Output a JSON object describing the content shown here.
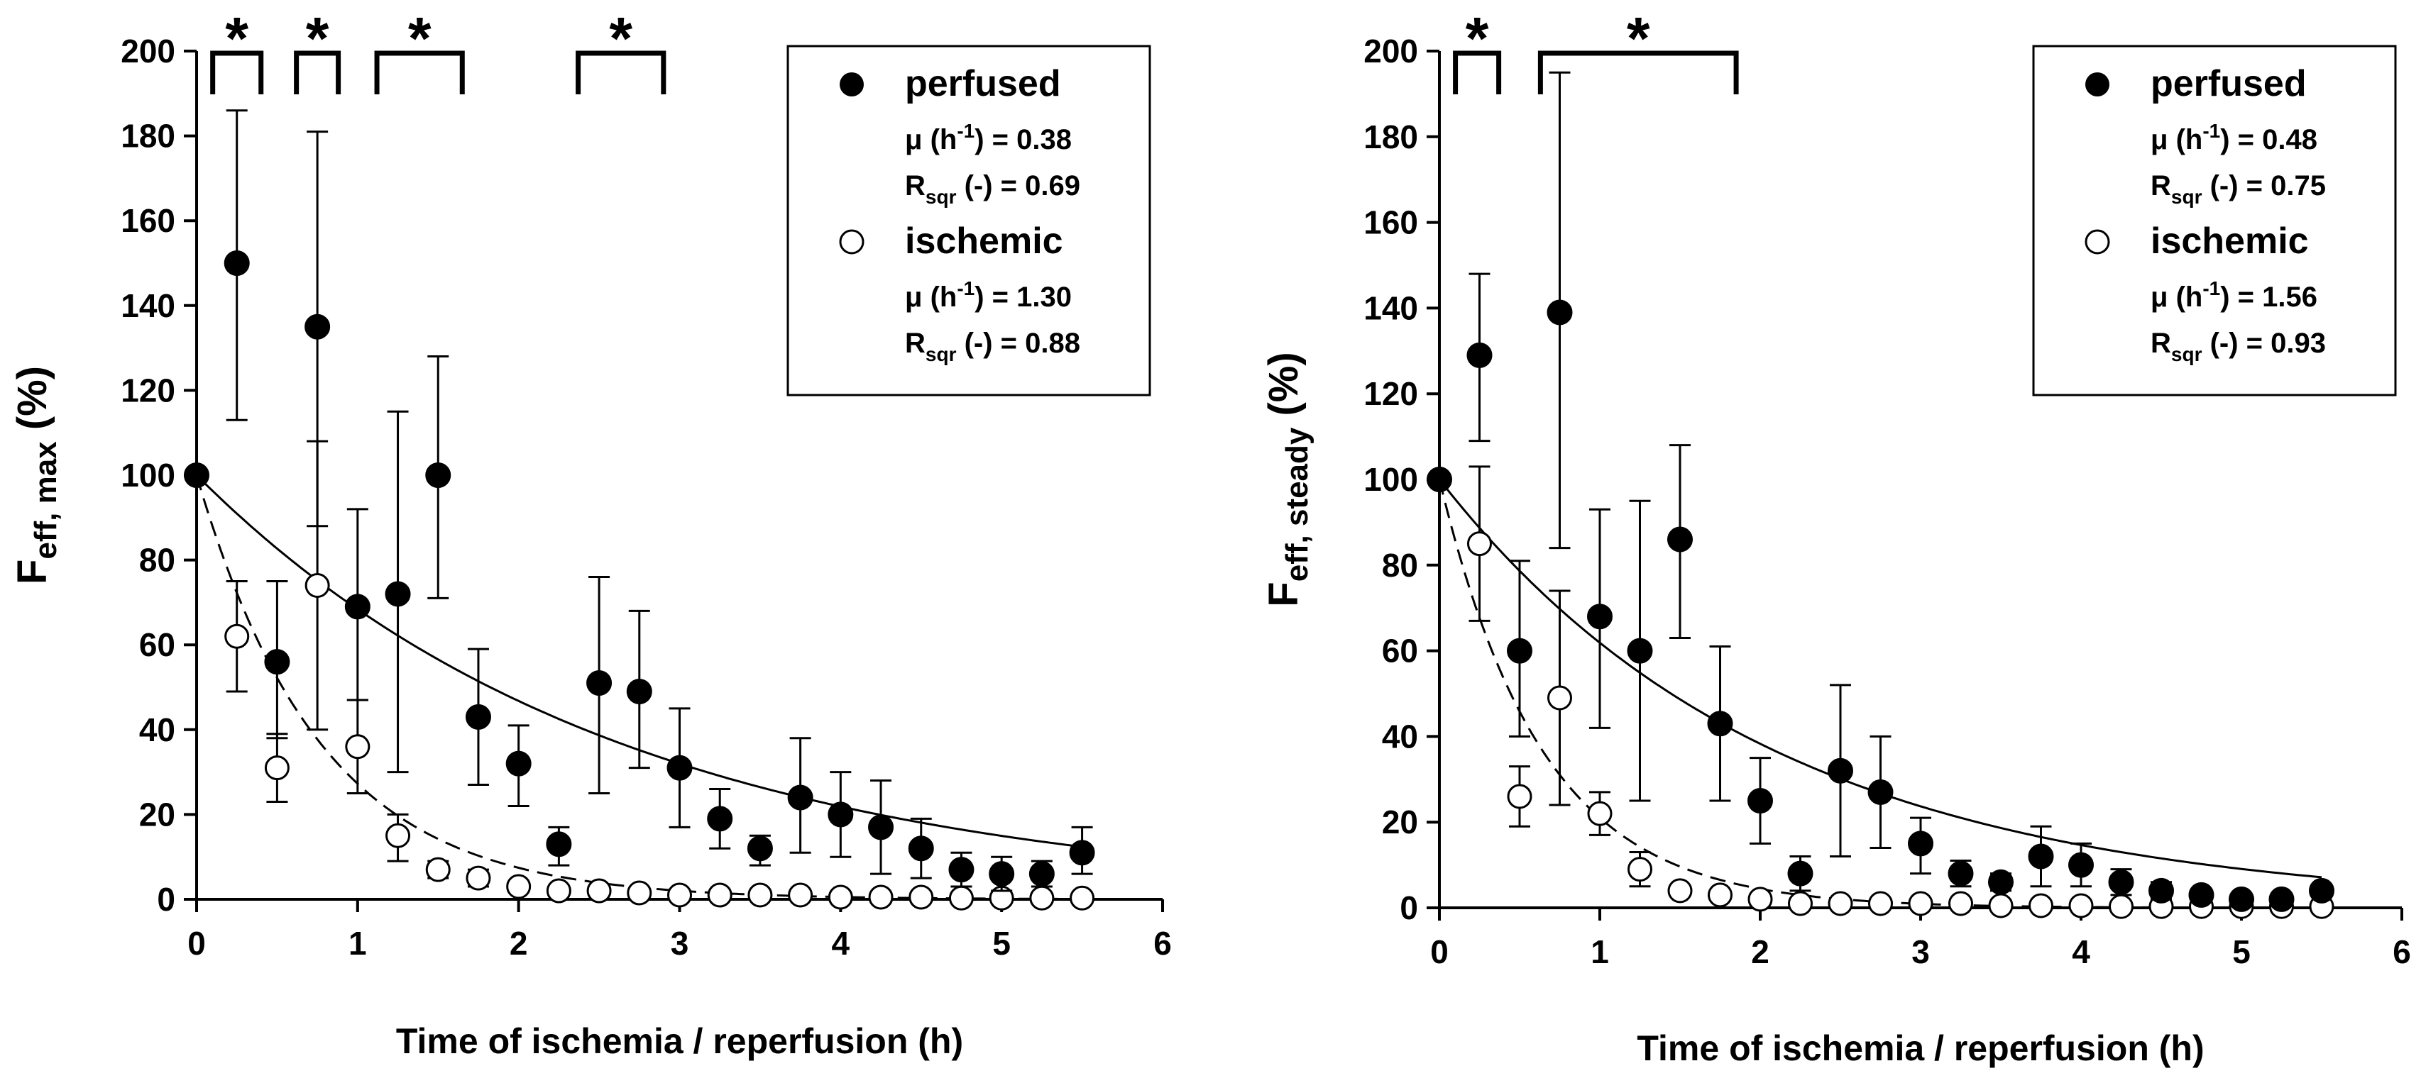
{
  "chart_data": [
    {
      "id": "left",
      "type": "scatter",
      "ylabel": {
        "main": "F",
        "sub": "eff, max",
        "unit": " (%)"
      },
      "xlabel": "Time of ischemia / reperfusion (h)",
      "xlim": [
        0,
        6
      ],
      "ylim": [
        0,
        200
      ],
      "x_ticks": [
        "0",
        "1",
        "2",
        "3",
        "4",
        "5",
        "6"
      ],
      "y_ticks": [
        "0",
        "20",
        "40",
        "60",
        "80",
        "100",
        "120",
        "140",
        "160",
        "180",
        "200"
      ],
      "significance": [
        {
          "x1": 0.1,
          "x2": 0.4,
          "label": "*"
        },
        {
          "x1": 0.62,
          "x2": 0.88,
          "label": "*"
        },
        {
          "x1": 1.12,
          "x2": 1.65,
          "label": "*"
        },
        {
          "x1": 2.37,
          "x2": 2.9,
          "label": "*"
        }
      ],
      "legend": {
        "perfused": {
          "label": "perfused",
          "mu_label": "μ (h",
          "mu_exp": "-1",
          "mu_value": ")  = 0.38",
          "r_label": "R",
          "r_sub": "sqr",
          "r_value": " (-) = 0.69"
        },
        "ischemic": {
          "label": "ischemic",
          "mu_label": "μ (h",
          "mu_exp": "-1",
          "mu_value": ")  = 1.30",
          "r_label": "R",
          "r_sub": "sqr",
          "r_value": " (-) = 0.88"
        }
      },
      "series": [
        {
          "name": "perfused",
          "marker": "filled",
          "fit_rate": 0.38,
          "x": [
            0,
            0.25,
            0.5,
            0.75,
            1.0,
            1.25,
            1.5,
            1.75,
            2.0,
            2.25,
            2.5,
            2.75,
            3.0,
            3.25,
            3.5,
            3.75,
            4.0,
            4.25,
            4.5,
            4.75,
            5.0,
            5.25,
            5.5
          ],
          "y": [
            100,
            150,
            56,
            135,
            69,
            72,
            100,
            43,
            32,
            13,
            51,
            49,
            31,
            19,
            12,
            24,
            20,
            17,
            12,
            7,
            6,
            6,
            11
          ],
          "upper": [
            100,
            186,
            75,
            181,
            92,
            115,
            128,
            59,
            41,
            17,
            76,
            68,
            45,
            26,
            15,
            38,
            30,
            28,
            19,
            11,
            10,
            9,
            17
          ],
          "lower": [
            100,
            113,
            38,
            88,
            47,
            30,
            71,
            27,
            22,
            8,
            25,
            31,
            17,
            12,
            8,
            11,
            10,
            6,
            5,
            3,
            2,
            3,
            6
          ]
        },
        {
          "name": "ischemic",
          "marker": "open",
          "fit_rate": 1.3,
          "x": [
            0,
            0.25,
            0.5,
            0.75,
            1.0,
            1.25,
            1.5,
            1.75,
            2.0,
            2.25,
            2.5,
            2.75,
            3.0,
            3.25,
            3.5,
            3.75,
            4.0,
            4.25,
            4.5,
            4.75,
            5.0,
            5.25,
            5.5
          ],
          "y": [
            100,
            62,
            31,
            74,
            36,
            15,
            7,
            5,
            3,
            2,
            2,
            1.5,
            1,
            1,
            1,
            1,
            0.5,
            0.5,
            0.5,
            0.3,
            0.3,
            0.3,
            0.3
          ],
          "upper": [
            100,
            75,
            39,
            108,
            47,
            20,
            9,
            7,
            4,
            3,
            3,
            2,
            1.5,
            1.5,
            1.5,
            1.5,
            1,
            1,
            1,
            0.5,
            0.5,
            0.5,
            0.5
          ],
          "lower": [
            100,
            49,
            23,
            40,
            25,
            9,
            5,
            3,
            2,
            1,
            1,
            1,
            0.5,
            0.5,
            0.5,
            0.5,
            0,
            0,
            0,
            0,
            0,
            0,
            0
          ]
        }
      ]
    },
    {
      "id": "right",
      "type": "scatter",
      "ylabel": {
        "main": "F",
        "sub": "eff, steady",
        "unit": " (%)"
      },
      "xlabel": "Time of ischemia / reperfusion (h)",
      "xlim": [
        0,
        6
      ],
      "ylim": [
        0,
        200
      ],
      "x_ticks": [
        "0",
        "1",
        "2",
        "3",
        "4",
        "5",
        "6"
      ],
      "y_ticks": [
        "0",
        "20",
        "40",
        "60",
        "80",
        "100",
        "120",
        "140",
        "160",
        "180",
        "200"
      ],
      "significance": [
        {
          "x1": 0.1,
          "x2": 0.37,
          "label": "*"
        },
        {
          "x1": 0.63,
          "x2": 1.85,
          "label": "*"
        }
      ],
      "legend": {
        "perfused": {
          "label": "perfused",
          "mu_label": "μ (h",
          "mu_exp": "-1",
          "mu_value": ")  = 0.48",
          "r_label": "R",
          "r_sub": "sqr",
          "r_value": " (-) = 0.75"
        },
        "ischemic": {
          "label": "ischemic",
          "mu_label": "μ (h",
          "mu_exp": "-1",
          "mu_value": ")  = 1.56",
          "r_label": "R",
          "r_sub": "sqr",
          "r_value": " (-) = 0.93"
        }
      },
      "series": [
        {
          "name": "perfused",
          "marker": "filled",
          "fit_rate": 0.48,
          "x": [
            0,
            0.25,
            0.5,
            0.75,
            1.0,
            1.25,
            1.5,
            1.75,
            2.0,
            2.25,
            2.5,
            2.75,
            3.0,
            3.25,
            3.5,
            3.75,
            4.0,
            4.25,
            4.5,
            4.75,
            5.0,
            5.25,
            5.5
          ],
          "y": [
            100,
            129,
            60,
            139,
            68,
            60,
            86,
            43,
            25,
            8,
            32,
            27,
            15,
            8,
            6,
            12,
            10,
            6,
            4,
            3,
            2,
            2,
            4
          ],
          "upper": [
            100,
            148,
            81,
            195,
            93,
            95,
            108,
            61,
            35,
            12,
            52,
            40,
            21,
            11,
            8,
            19,
            15,
            9,
            6,
            4,
            3,
            3,
            5
          ],
          "lower": [
            100,
            109,
            40,
            84,
            42,
            25,
            63,
            25,
            15,
            4,
            12,
            14,
            8,
            5,
            4,
            5,
            5,
            3,
            2,
            2,
            1,
            1,
            3
          ]
        },
        {
          "name": "ischemic",
          "marker": "open",
          "fit_rate": 1.56,
          "x": [
            0,
            0.25,
            0.5,
            0.75,
            1.0,
            1.25,
            1.5,
            1.75,
            2.0,
            2.25,
            2.5,
            2.75,
            3.0,
            3.25,
            3.5,
            3.75,
            4.0,
            4.25,
            4.5,
            4.75,
            5.0,
            5.25,
            5.5
          ],
          "y": [
            100,
            85,
            26,
            49,
            22,
            9,
            4,
            3,
            2,
            1,
            1,
            1,
            1,
            1,
            0.5,
            0.5,
            0.5,
            0.3,
            0.3,
            0.3,
            0.3,
            0.3,
            0.3
          ],
          "upper": [
            100,
            103,
            33,
            74,
            27,
            13,
            5,
            4,
            3,
            2,
            2,
            1.5,
            1.5,
            1.5,
            1,
            1,
            1,
            0.5,
            0.5,
            0.5,
            0.5,
            0.5,
            0.5
          ],
          "lower": [
            100,
            67,
            19,
            24,
            17,
            5,
            3,
            2,
            1,
            0.5,
            0.5,
            0.5,
            0.5,
            0.5,
            0,
            0,
            0,
            0,
            0,
            0,
            0,
            0,
            0
          ]
        }
      ]
    }
  ]
}
